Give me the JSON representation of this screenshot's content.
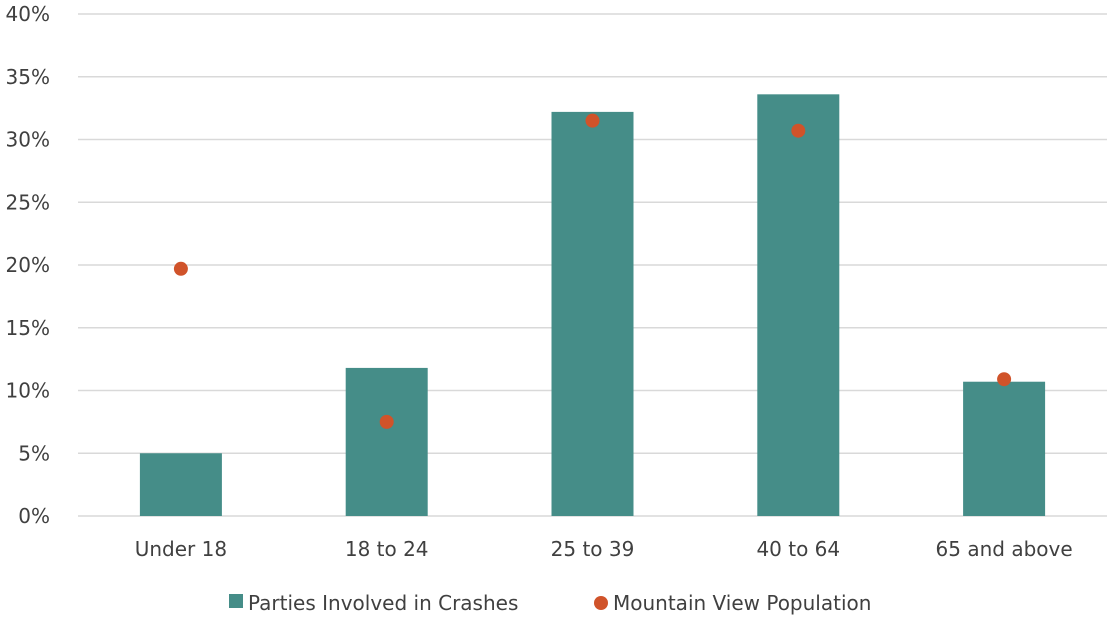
{
  "chart_data": {
    "type": "bar",
    "title": "",
    "xlabel": "",
    "ylabel": "",
    "categories": [
      "Under 18",
      "18 to 24",
      "25 to 39",
      "40 to 64",
      "65 and above"
    ],
    "series": [
      {
        "name": "Parties Involved in Crashes",
        "kind": "bar",
        "color": "#458d88",
        "values": [
          5.0,
          11.8,
          32.2,
          33.6,
          10.7
        ]
      },
      {
        "name": "Mountain View Population",
        "kind": "point",
        "color": "#d0532a",
        "values": [
          19.7,
          7.5,
          31.5,
          30.7,
          10.9
        ]
      }
    ],
    "ylim": [
      0,
      40
    ],
    "yticks": [
      "0%",
      "5%",
      "10%",
      "15%",
      "20%",
      "25%",
      "30%",
      "35%",
      "40%"
    ],
    "grid": true,
    "legend_position": "bottom"
  }
}
